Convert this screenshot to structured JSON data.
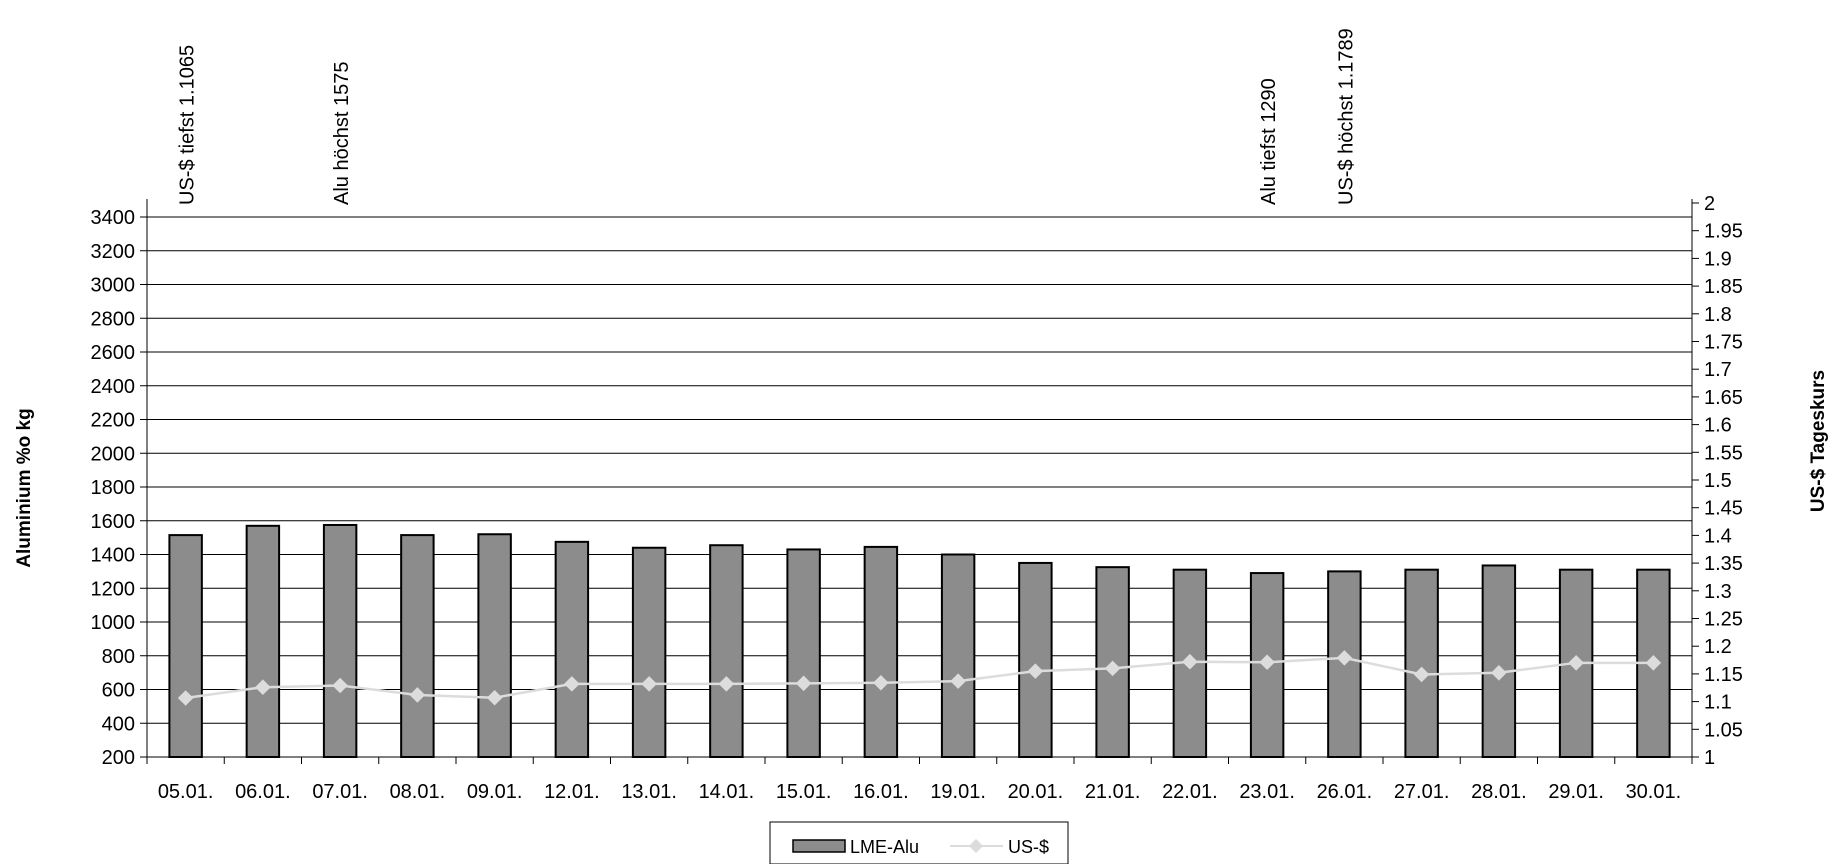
{
  "chart_data": {
    "type": "bar",
    "categories": [
      "05.01.",
      "06.01.",
      "07.01.",
      "08.01.",
      "09.01.",
      "12.01.",
      "13.01.",
      "14.01.",
      "15.01.",
      "16.01.",
      "19.01.",
      "20.01.",
      "21.01.",
      "22.01.",
      "23.01.",
      "26.01.",
      "27.01.",
      "28.01.",
      "29.01.",
      "30.01."
    ],
    "series": [
      {
        "name": "LME-Alu",
        "type": "bar",
        "axis": "left",
        "color": "#8c8c8c",
        "values": [
          1515,
          1570,
          1575,
          1515,
          1520,
          1475,
          1440,
          1455,
          1430,
          1445,
          1400,
          1350,
          1325,
          1310,
          1290,
          1300,
          1310,
          1335,
          1310,
          1310
        ]
      },
      {
        "name": "US-$",
        "type": "line",
        "axis": "right",
        "color": "#dcdcdc",
        "values": [
          1.1065,
          1.126,
          1.129,
          1.112,
          1.107,
          1.132,
          1.132,
          1.132,
          1.133,
          1.134,
          1.137,
          1.155,
          1.16,
          1.172,
          1.171,
          1.1789,
          1.149,
          1.152,
          1.17,
          1.17
        ]
      }
    ],
    "ylabel": "Aluminium %o kg",
    "y2label": "US-$ Tageskurs",
    "ylim": [
      200,
      3400
    ],
    "y2lim": [
      1,
      2
    ],
    "yticks": [
      "200",
      "400",
      "600",
      "800",
      "1000",
      "1200",
      "1400",
      "1600",
      "1800",
      "2000",
      "2200",
      "2400",
      "2600",
      "2800",
      "3000",
      "3200",
      "3400"
    ],
    "y2ticks": [
      "1",
      "1.05",
      "1.1",
      "1.15",
      "1.2",
      "1.25",
      "1.3",
      "1.35",
      "1.4",
      "1.45",
      "1.5",
      "1.55",
      "1.6",
      "1.65",
      "1.7",
      "1.75",
      "1.8",
      "1.85",
      "1.9",
      "1.95",
      "2"
    ],
    "grid": true,
    "legend": "bottom-center",
    "annotations": [
      {
        "text": "US-$ tiefst 1.1065",
        "category_index": 0
      },
      {
        "text": "Alu höchst 1575",
        "category_index": 2
      },
      {
        "text": "Alu tiefst 1290",
        "category_index": 14
      },
      {
        "text": "US-$ höchst 1.1789",
        "category_index": 15
      }
    ]
  }
}
